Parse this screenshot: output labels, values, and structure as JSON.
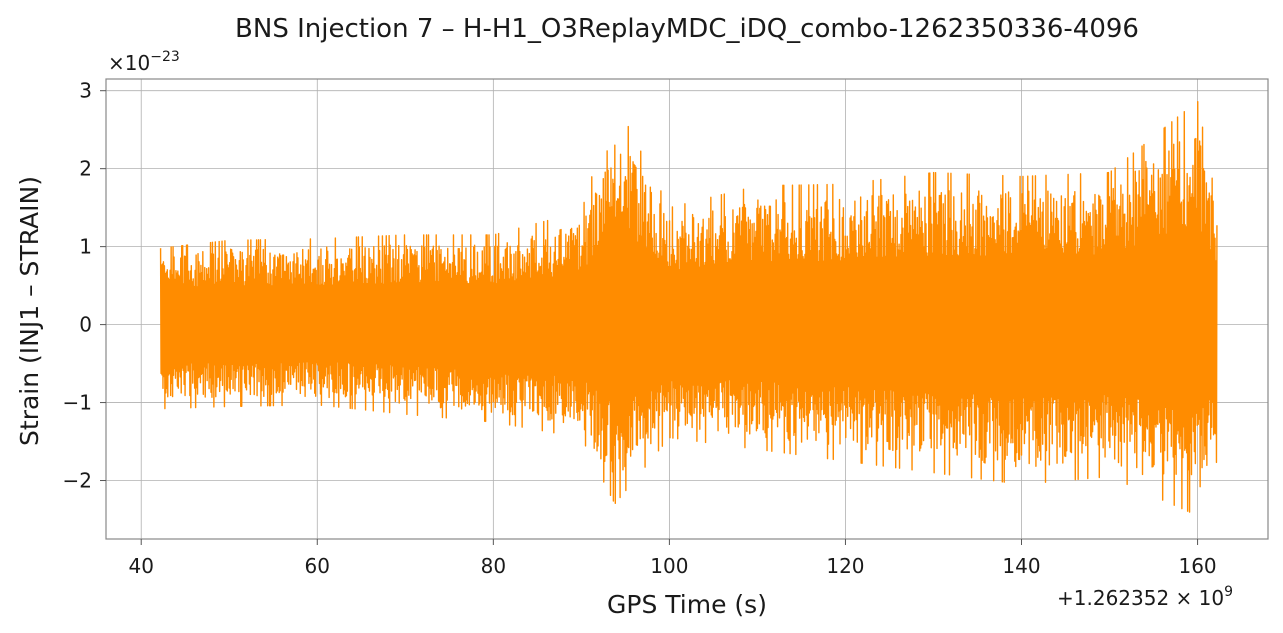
{
  "chart_data": {
    "type": "line",
    "title": "BNS Injection 7 – H-H1_O3ReplayMDC_iDQ_combo-1262350336-4096",
    "xlabel": "GPS Time (s)",
    "ylabel": "Strain (INJ1 – STRAIN)",
    "x_offset_label": "+1.262352 × 10",
    "x_offset_exponent": "9",
    "y_scale_label": "×10",
    "y_scale_exponent": "−23",
    "xlim": [
      36,
      168
    ],
    "ylim": [
      -2.75,
      3.15
    ],
    "x_ticks": [
      40,
      60,
      80,
      100,
      120,
      140,
      160
    ],
    "x_tick_labels": [
      "40",
      "60",
      "80",
      "100",
      "120",
      "140",
      "160"
    ],
    "y_ticks": [
      -2,
      -1,
      0,
      1,
      2,
      3
    ],
    "y_tick_labels": [
      "−2",
      "−1",
      "0",
      "1",
      "2",
      "3"
    ],
    "grid": true,
    "series": [
      {
        "color": "#ff8c00",
        "x_start": 42.2,
        "x_end": 162.2,
        "envelope": [
          {
            "x": 42.2,
            "max": 0.98,
            "min": -1.08
          },
          {
            "x": 50,
            "max": 1.08,
            "min": -1.05
          },
          {
            "x": 60,
            "max": 1.1,
            "min": -1.03
          },
          {
            "x": 70,
            "max": 1.15,
            "min": -1.15
          },
          {
            "x": 80,
            "max": 1.15,
            "min": -1.25
          },
          {
            "x": 90,
            "max": 1.45,
            "min": -1.45
          },
          {
            "x": 93.8,
            "max": 2.88,
            "min": -2.3
          },
          {
            "x": 100,
            "max": 1.5,
            "min": -1.45
          },
          {
            "x": 110,
            "max": 1.78,
            "min": -1.6
          },
          {
            "x": 120,
            "max": 1.8,
            "min": -1.75
          },
          {
            "x": 130,
            "max": 1.95,
            "min": -1.9
          },
          {
            "x": 140,
            "max": 1.9,
            "min": -2.05
          },
          {
            "x": 150,
            "max": 1.95,
            "min": -1.95
          },
          {
            "x": 160,
            "max": 2.87,
            "min": -2.45
          },
          {
            "x": 162.2,
            "max": 1.55,
            "min": -1.75
          }
        ]
      }
    ]
  }
}
